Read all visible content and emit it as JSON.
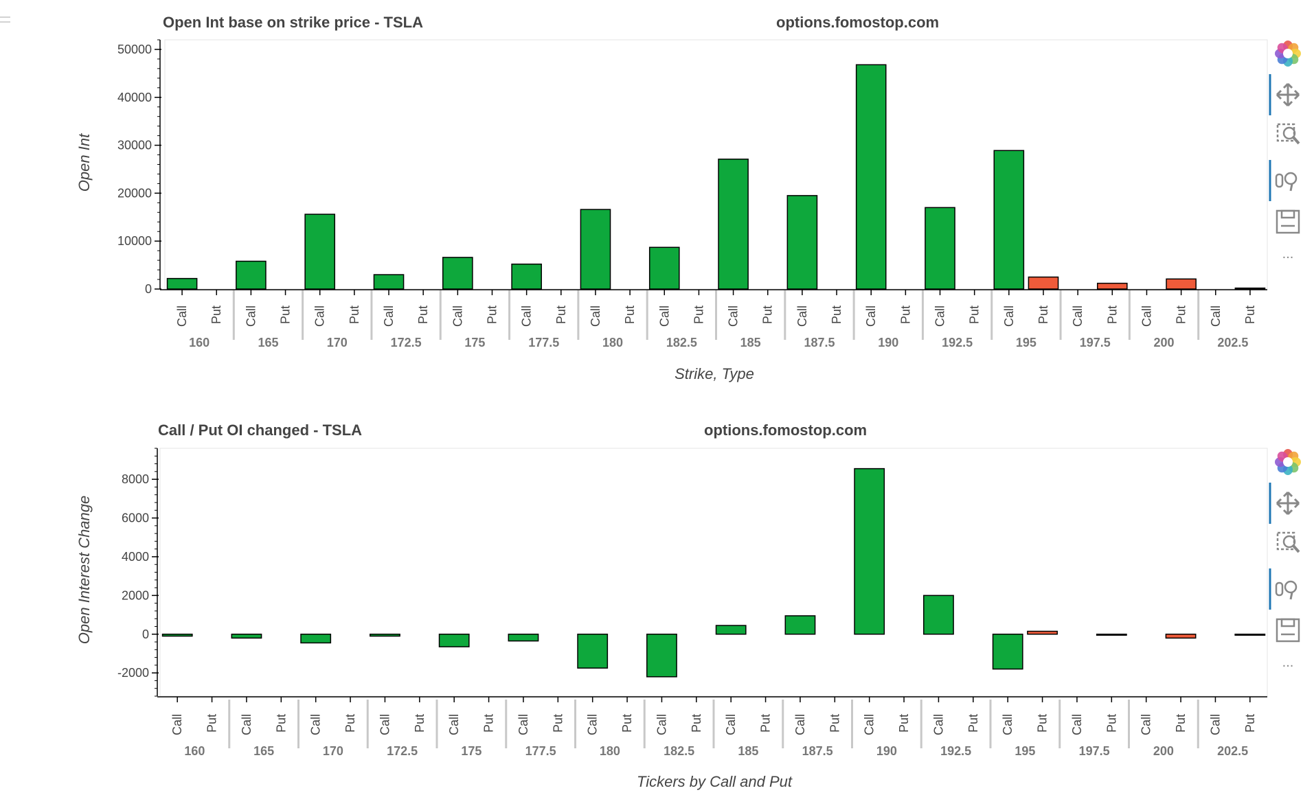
{
  "colors": {
    "call": "#0ea83c",
    "put": "#ef5b3a",
    "outline": "#000000",
    "axis": "#000000",
    "frame": "#e5e5e5",
    "separator": "#c8c8c8"
  },
  "toolbar": {
    "items": [
      {
        "name": "bokeh-logo-icon",
        "label": ""
      },
      {
        "name": "pan-tool-icon",
        "label": ""
      },
      {
        "name": "box-zoom-tool-icon",
        "label": ""
      },
      {
        "name": "wheel-zoom-tool-icon",
        "label": ""
      },
      {
        "name": "save-tool-icon",
        "label": ""
      },
      {
        "name": "more-tools-icon",
        "label": "..."
      }
    ]
  },
  "chart_data": [
    {
      "type": "bar",
      "title": "Open Int base on strike price - TSLA",
      "watermark": "options.fomostop.com",
      "xlabel": "Strike, Type",
      "ylabel": "Open Int",
      "ylim": [
        0,
        52000
      ],
      "yticks": [
        0,
        10000,
        20000,
        30000,
        40000,
        50000
      ],
      "ytick_labels": [
        "0",
        "10000",
        "20000",
        "30000",
        "40000",
        "50000"
      ],
      "strikes": [
        "160",
        "165",
        "170",
        "172.5",
        "175",
        "177.5",
        "180",
        "182.5",
        "185",
        "187.5",
        "190",
        "192.5",
        "195",
        "197.5",
        "200",
        "202.5"
      ],
      "types": [
        "Call",
        "Put"
      ],
      "series": [
        {
          "name": "Call",
          "values": [
            2200,
            5800,
            15600,
            3000,
            6600,
            5200,
            16600,
            8700,
            27100,
            19500,
            46800,
            17000,
            28900,
            0,
            0,
            0
          ]
        },
        {
          "name": "Put",
          "values": [
            0,
            0,
            0,
            0,
            0,
            0,
            0,
            0,
            0,
            0,
            0,
            0,
            2500,
            1200,
            2100,
            200
          ]
        }
      ]
    },
    {
      "type": "bar",
      "title": "Call / Put OI changed - TSLA",
      "watermark": "options.fomostop.com",
      "xlabel": "Tickers by Call and Put",
      "ylabel": "Open Interest Change",
      "ylim": [
        -3200,
        9600
      ],
      "yticks": [
        -2000,
        0,
        2000,
        4000,
        6000,
        8000
      ],
      "ytick_labels": [
        "-2000",
        "0",
        "2000",
        "4000",
        "6000",
        "8000"
      ],
      "strikes": [
        "160",
        "165",
        "170",
        "172.5",
        "175",
        "177.5",
        "180",
        "182.5",
        "185",
        "187.5",
        "190",
        "192.5",
        "195",
        "197.5",
        "200",
        "202.5"
      ],
      "types": [
        "Call",
        "Put"
      ],
      "series": [
        {
          "name": "Call",
          "values": [
            -100,
            -200,
            -450,
            -100,
            -650,
            -350,
            -1750,
            -2200,
            450,
            950,
            8550,
            2000,
            -1800,
            0,
            0,
            0
          ]
        },
        {
          "name": "Put",
          "values": [
            0,
            0,
            0,
            0,
            0,
            0,
            0,
            0,
            0,
            0,
            0,
            0,
            150,
            -30,
            -200,
            -30
          ]
        }
      ]
    }
  ]
}
